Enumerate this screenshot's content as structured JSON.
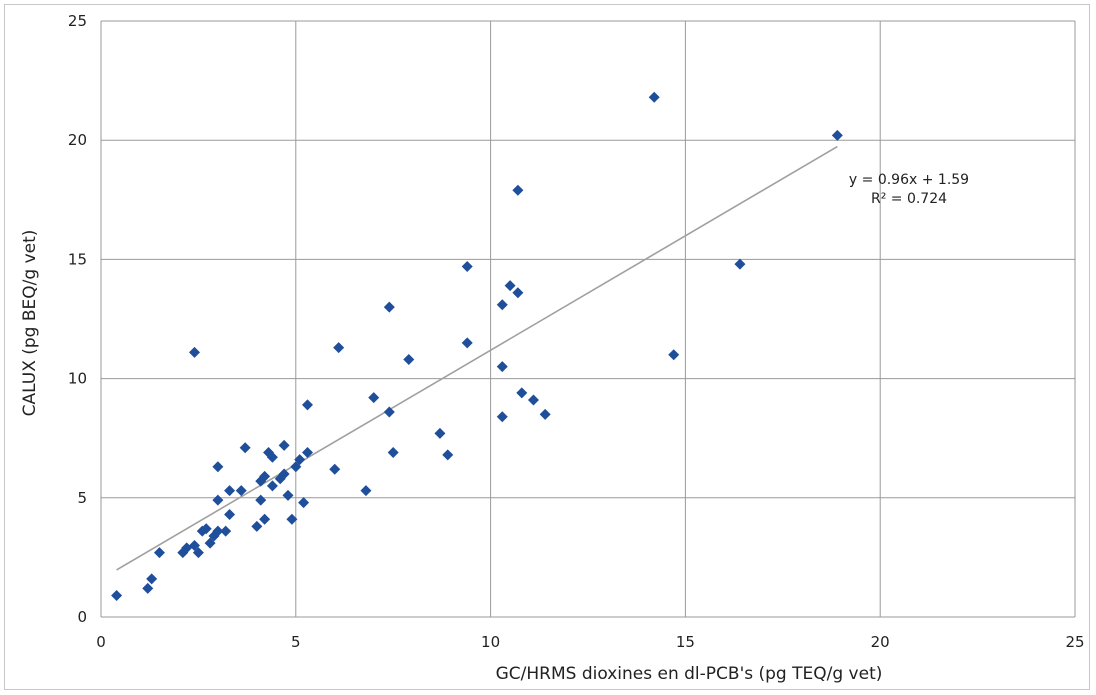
{
  "chart_data": {
    "type": "scatter",
    "xlabel": "GC/HRMS dioxines en dl-PCB's (pg TEQ/g vet)",
    "ylabel": "CALUX (pg BEQ/g vet)",
    "xlim": [
      0,
      25
    ],
    "ylim": [
      0,
      25
    ],
    "x_ticks": [
      "0",
      "5",
      "10",
      "15",
      "20",
      "25"
    ],
    "y_ticks": [
      "0",
      "5",
      "10",
      "15",
      "20",
      "25"
    ],
    "grid": true,
    "marker_color": "#1f4e9a",
    "trendline_color": "#a0a0a0",
    "trendline": {
      "slope": 0.96,
      "intercept": 1.59,
      "x_range": [
        0.4,
        18.9
      ]
    },
    "annotation": {
      "equation": "y = 0.96x + 1.59",
      "r_squared": "R² = 0.724"
    },
    "points": [
      [
        0.4,
        0.9
      ],
      [
        1.2,
        1.2
      ],
      [
        1.3,
        1.6
      ],
      [
        1.5,
        2.7
      ],
      [
        2.1,
        2.7
      ],
      [
        2.2,
        2.9
      ],
      [
        2.4,
        3.0
      ],
      [
        2.5,
        2.7
      ],
      [
        2.6,
        3.6
      ],
      [
        2.7,
        3.7
      ],
      [
        2.8,
        3.1
      ],
      [
        2.9,
        3.4
      ],
      [
        3.0,
        3.6
      ],
      [
        3.0,
        4.9
      ],
      [
        3.0,
        6.3
      ],
      [
        3.2,
        3.6
      ],
      [
        3.3,
        4.3
      ],
      [
        3.3,
        5.3
      ],
      [
        3.6,
        5.3
      ],
      [
        3.7,
        7.1
      ],
      [
        4.0,
        3.8
      ],
      [
        4.1,
        4.9
      ],
      [
        4.1,
        5.7
      ],
      [
        4.2,
        5.9
      ],
      [
        4.2,
        4.1
      ],
      [
        4.3,
        6.9
      ],
      [
        4.4,
        5.5
      ],
      [
        4.4,
        6.7
      ],
      [
        4.6,
        5.8
      ],
      [
        4.7,
        7.2
      ],
      [
        4.7,
        6.0
      ],
      [
        4.8,
        5.1
      ],
      [
        4.9,
        4.1
      ],
      [
        5.0,
        6.3
      ],
      [
        5.1,
        6.6
      ],
      [
        5.2,
        4.8
      ],
      [
        5.3,
        8.9
      ],
      [
        5.3,
        6.9
      ],
      [
        6.0,
        6.2
      ],
      [
        6.1,
        11.3
      ],
      [
        6.8,
        5.3
      ],
      [
        7.0,
        9.2
      ],
      [
        7.4,
        13.0
      ],
      [
        7.4,
        8.6
      ],
      [
        7.5,
        6.9
      ],
      [
        7.9,
        10.8
      ],
      [
        8.7,
        7.7
      ],
      [
        8.9,
        6.8
      ],
      [
        9.4,
        11.5
      ],
      [
        9.4,
        14.7
      ],
      [
        10.3,
        10.5
      ],
      [
        10.3,
        13.1
      ],
      [
        10.3,
        8.4
      ],
      [
        10.5,
        13.9
      ],
      [
        10.7,
        13.6
      ],
      [
        10.7,
        17.9
      ],
      [
        10.8,
        9.4
      ],
      [
        11.1,
        9.1
      ],
      [
        11.4,
        8.5
      ],
      [
        2.4,
        11.1
      ],
      [
        14.2,
        21.8
      ],
      [
        14.7,
        11.0
      ],
      [
        16.4,
        14.8
      ],
      [
        18.9,
        20.2
      ]
    ]
  }
}
